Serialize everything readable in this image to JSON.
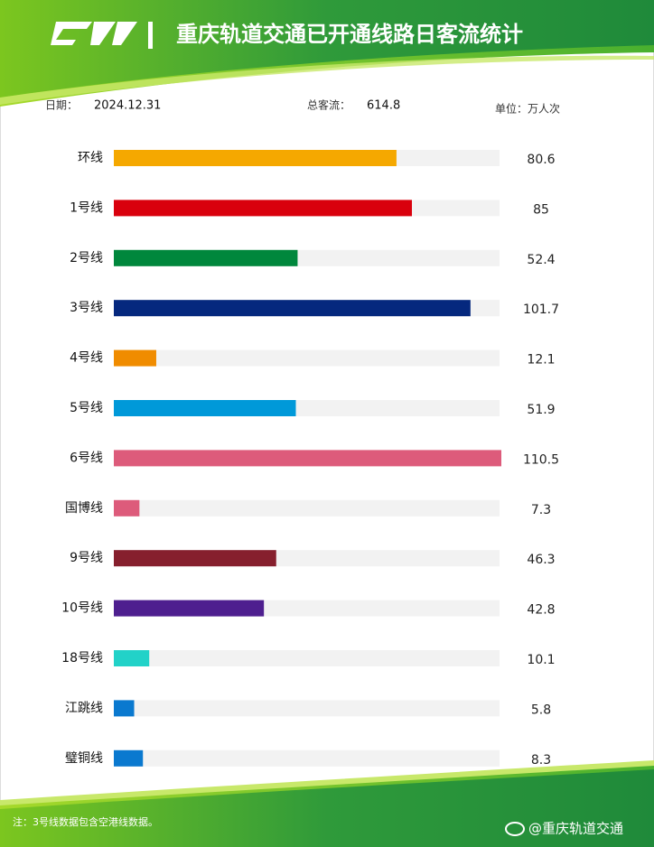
{
  "chart_data": {
    "type": "bar",
    "title": "重庆轨道交通已开通线路日客流统计",
    "date_label": "日期：",
    "date": "2024.12.31",
    "total_label": "总客流：",
    "total": 614.8,
    "unit": "单位：万人次",
    "categories": [
      "环线",
      "1号线",
      "2号线",
      "3号线",
      "4号线",
      "5号线",
      "6号线",
      "国博线",
      "9号线",
      "10号线",
      "18号线",
      "江跳线",
      "璧铜线"
    ],
    "values": [
      80.6,
      85,
      52.4,
      101.7,
      12.1,
      51.9,
      110.5,
      7.3,
      46.3,
      42.8,
      10.1,
      5.8,
      8.3
    ],
    "colors": [
      "#f5a800",
      "#d9000d",
      "#00873c",
      "#05287e",
      "#f08c00",
      "#0099d9",
      "#dd5b7b",
      "#dd5b7b",
      "#861f2d",
      "#4e1f8f",
      "#22d2c8",
      "#0a79cf",
      "#0a79cf"
    ],
    "note": "注：3号线数据包含空港线数据。",
    "watermark": "@重庆轨道交通"
  }
}
